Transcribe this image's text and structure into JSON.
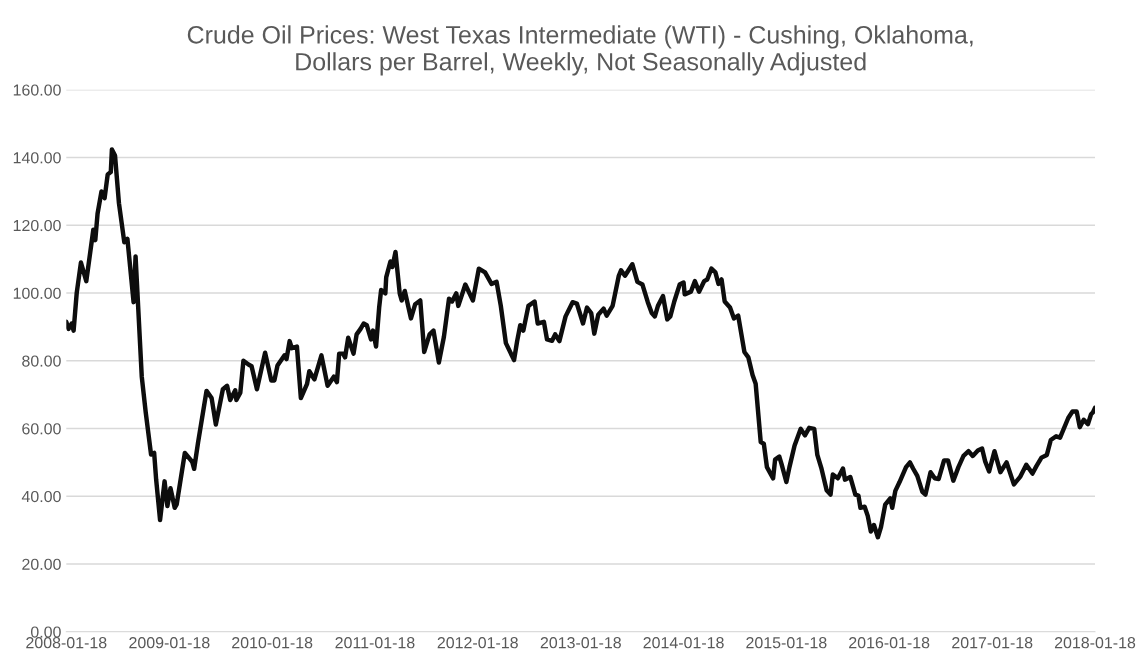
{
  "chart_data": {
    "type": "line",
    "title": "Crude Oil Prices: West Texas Intermediate (WTI) - Cushing, Oklahoma,\nDollars per Barrel, Weekly, Not Seasonally Adjusted",
    "x": [
      "2008-01-18",
      "2008-01-26",
      "2008-02-06",
      "2008-02-13",
      "2008-02-24",
      "2008-03-10",
      "2008-03-29",
      "2008-04-23",
      "2008-04-30",
      "2008-05-08",
      "2008-05-22",
      "2008-06-02",
      "2008-06-13",
      "2008-06-24",
      "2008-06-28",
      "2008-07-09",
      "2008-07-23",
      "2008-08-11",
      "2008-08-22",
      "2008-09-13",
      "2008-09-20",
      "2008-10-12",
      "2008-10-26",
      "2008-11-14",
      "2008-11-25",
      "2008-12-02",
      "2008-12-16",
      "2009-01-01",
      "2009-01-11",
      "2009-01-22",
      "2009-02-06",
      "2009-02-13",
      "2009-03-14",
      "2009-04-09",
      "2009-04-16",
      "2009-04-30",
      "2009-05-30",
      "2009-06-17",
      "2009-07-02",
      "2009-07-27",
      "2009-08-11",
      "2009-08-22",
      "2009-09-09",
      "2009-09-13",
      "2009-09-27",
      "2009-10-08",
      "2009-10-26",
      "2009-11-06",
      "2009-11-25",
      "2009-12-24",
      "2010-01-15",
      "2010-01-26",
      "2010-02-06",
      "2010-03-03",
      "2010-03-10",
      "2010-03-21",
      "2010-03-29",
      "2010-04-16",
      "2010-04-30",
      "2010-05-22",
      "2010-05-30",
      "2010-06-17",
      "2010-07-12",
      "2010-08-03",
      "2010-08-25",
      "2010-09-05",
      "2010-09-13",
      "2010-09-27",
      "2010-10-04",
      "2010-10-15",
      "2010-11-03",
      "2010-11-14",
      "2010-11-28",
      "2010-12-09",
      "2010-12-20",
      "2011-01-04",
      "2011-01-11",
      "2011-01-22",
      "2011-02-02",
      "2011-02-09",
      "2011-02-24",
      "2011-02-27",
      "2011-03-14",
      "2011-03-21",
      "2011-04-01",
      "2011-04-16",
      "2011-04-23",
      "2011-05-04",
      "2011-05-26",
      "2011-06-10",
      "2011-06-28",
      "2011-07-12",
      "2011-07-31",
      "2011-08-14",
      "2011-09-02",
      "2011-09-20",
      "2011-10-08",
      "2011-10-19",
      "2011-11-03",
      "2011-11-10",
      "2011-12-05",
      "2012-01-01",
      "2012-01-22",
      "2012-02-13",
      "2012-03-07",
      "2012-03-25",
      "2012-04-09",
      "2012-04-27",
      "2012-05-26",
      "2012-06-06",
      "2012-06-17",
      "2012-06-28",
      "2012-07-16",
      "2012-08-07",
      "2012-08-18",
      "2012-09-09",
      "2012-09-20",
      "2012-10-08",
      "2012-10-19",
      "2012-11-03",
      "2012-11-25",
      "2012-12-20",
      "2013-01-04",
      "2013-01-26",
      "2013-02-09",
      "2013-02-24",
      "2013-03-07",
      "2013-03-21",
      "2013-04-09",
      "2013-04-20",
      "2013-05-11",
      "2013-06-02",
      "2013-06-10",
      "2013-06-24",
      "2013-07-20",
      "2013-08-07",
      "2013-08-25",
      "2013-09-13",
      "2013-09-27",
      "2013-10-08",
      "2013-10-19",
      "2013-11-06",
      "2013-11-21",
      "2013-12-02",
      "2013-12-16",
      "2014-01-04",
      "2014-01-18",
      "2014-01-22",
      "2014-02-13",
      "2014-02-27",
      "2014-03-14",
      "2014-04-01",
      "2014-04-12",
      "2014-04-27",
      "2014-05-11",
      "2014-05-22",
      "2014-06-02",
      "2014-06-13",
      "2014-07-02",
      "2014-07-16",
      "2014-07-31",
      "2014-08-22",
      "2014-09-05",
      "2014-09-20",
      "2014-10-01",
      "2014-10-19",
      "2014-10-30",
      "2014-11-10",
      "2014-12-02",
      "2014-12-09",
      "2014-12-24",
      "2015-01-01",
      "2015-01-18",
      "2015-01-29",
      "2015-02-16",
      "2015-03-10",
      "2015-03-25",
      "2015-04-09",
      "2015-04-27",
      "2015-05-08",
      "2015-05-22",
      "2015-06-10",
      "2015-06-24",
      "2015-07-02",
      "2015-07-20",
      "2015-08-07",
      "2015-08-14",
      "2015-09-02",
      "2015-09-20",
      "2015-10-01",
      "2015-10-08",
      "2015-10-23",
      "2015-11-03",
      "2015-11-14",
      "2015-11-25",
      "2015-12-09",
      "2015-12-20",
      "2016-01-04",
      "2016-01-22",
      "2016-01-29",
      "2016-02-09",
      "2016-02-24",
      "2016-03-18",
      "2016-04-01",
      "2016-04-12",
      "2016-04-27",
      "2016-05-15",
      "2016-05-26",
      "2016-06-13",
      "2016-06-28",
      "2016-07-12",
      "2016-07-31",
      "2016-08-14",
      "2016-09-02",
      "2016-09-20",
      "2016-10-08",
      "2016-10-26",
      "2016-11-10",
      "2016-11-28",
      "2016-12-13",
      "2016-12-24",
      "2017-01-07",
      "2017-01-26",
      "2017-02-16",
      "2017-03-10",
      "2017-04-05",
      "2017-04-27",
      "2017-05-19",
      "2017-06-10",
      "2017-06-24",
      "2017-07-12",
      "2017-07-31",
      "2017-08-14",
      "2017-09-02",
      "2017-09-16",
      "2017-10-15",
      "2017-10-30",
      "2017-11-14",
      "2017-11-25",
      "2017-12-09",
      "2017-12-24",
      "2018-01-04",
      "2018-01-11",
      "2018-01-18"
    ],
    "series": [
      {
        "color": "#0d0d0d",
        "values": [
          91.5,
          89.4,
          91,
          88.9,
          100,
          109,
          103.5,
          118.7,
          115.6,
          123.4,
          130,
          128,
          135,
          135.7,
          142.4,
          140.6,
          126.5,
          115,
          116,
          97.3,
          110.8,
          75.3,
          64.8,
          52.3,
          52.8,
          45,
          33,
          44.4,
          37.1,
          42.4,
          36.6,
          37.6,
          52.8,
          50.2,
          48.1,
          55.9,
          71.1,
          69,
          61.2,
          71.6,
          72.6,
          68.4,
          71.3,
          68.4,
          70.6,
          80,
          78.9,
          78.4,
          71.6,
          82.4,
          74.2,
          74.2,
          78.6,
          81.6,
          80.5,
          85.8,
          83.7,
          84.2,
          69,
          73.2,
          76.9,
          74.5,
          81.6,
          72.6,
          75.3,
          73.7,
          82.1,
          82.1,
          81,
          86.8,
          82.1,
          87.8,
          89.4,
          91,
          90.5,
          86.3,
          88.9,
          84.2,
          95.7,
          100.9,
          99.9,
          104.6,
          109.3,
          107.7,
          112.1,
          99.9,
          97.8,
          100.6,
          92.5,
          96.7,
          97.8,
          82.6,
          87.8,
          88.9,
          79.5,
          87.1,
          98.3,
          97.5,
          99.9,
          96.2,
          102.5,
          97.8,
          107.2,
          106.1,
          102.7,
          103.3,
          96.2,
          85.2,
          80.2,
          85.8,
          90.5,
          88.9,
          96.2,
          97.5,
          91,
          91.5,
          86.3,
          85.9,
          87.8,
          85.8,
          93.1,
          97.3,
          96.9,
          91,
          95.7,
          94.1,
          88,
          93.6,
          95.4,
          93.3,
          96.2,
          105.1,
          106.7,
          105.1,
          108.5,
          103.3,
          102.5,
          97.3,
          94.1,
          93.1,
          96.2,
          99.1,
          92.2,
          93.1,
          97.5,
          102.5,
          103.1,
          99.6,
          100.4,
          103.5,
          100.4,
          103.5,
          104,
          107.2,
          106.1,
          102.7,
          104,
          97.5,
          95.7,
          92.5,
          93.3,
          82.6,
          81,
          75.8,
          73.2,
          56,
          55.5,
          48.6,
          45.3,
          50.8,
          51.7,
          49.5,
          44.2,
          48.6,
          54.9,
          59.9,
          58,
          60.2,
          59.9,
          52.2,
          48.4,
          41.8,
          40.5,
          46.4,
          45.3,
          48.2,
          44.9,
          45.7,
          40.5,
          40.2,
          36.6,
          36.9,
          34.2,
          29.6,
          31.5,
          27.9,
          30.9,
          37.5,
          39.4,
          36.6,
          41.6,
          44.2,
          48.6,
          50,
          48.2,
          46,
          41.3,
          40.5,
          47.1,
          45.3,
          45.1,
          50.6,
          50.6,
          44.6,
          48.6,
          51.9,
          53.3,
          51.9,
          53.5,
          54.1,
          50.3,
          47.3,
          53.3,
          47.1,
          50,
          43.5,
          45.7,
          49.3,
          46.7,
          48.9,
          51.4,
          52.2,
          56.6,
          57.7,
          57.3,
          63.1,
          65,
          65,
          60.4,
          62.6,
          61.3,
          64.2,
          64.8,
          66.1
        ]
      }
    ],
    "xlim": [
      "2008-01-18",
      "2018-01-18"
    ],
    "xticks": [
      "2008-01-18",
      "2009-01-18",
      "2010-01-18",
      "2011-01-18",
      "2012-01-18",
      "2013-01-18",
      "2014-01-18",
      "2015-01-18",
      "2016-01-18",
      "2017-01-18",
      "2018-01-18"
    ],
    "ylim": [
      0,
      160
    ],
    "yticks": [
      {
        "value": 0,
        "label": "0.00"
      },
      {
        "value": 20,
        "label": "20.00"
      },
      {
        "value": 40,
        "label": "40.00"
      },
      {
        "value": 60,
        "label": "60.00"
      },
      {
        "value": 80,
        "label": "80.00"
      },
      {
        "value": 100,
        "label": "100.00"
      },
      {
        "value": 120,
        "label": "120.00"
      },
      {
        "value": 140,
        "label": "140.00"
      },
      {
        "value": 160,
        "label": "160.00"
      }
    ],
    "grid": "y",
    "legend": false,
    "marker": "none",
    "line_style": "solid"
  }
}
